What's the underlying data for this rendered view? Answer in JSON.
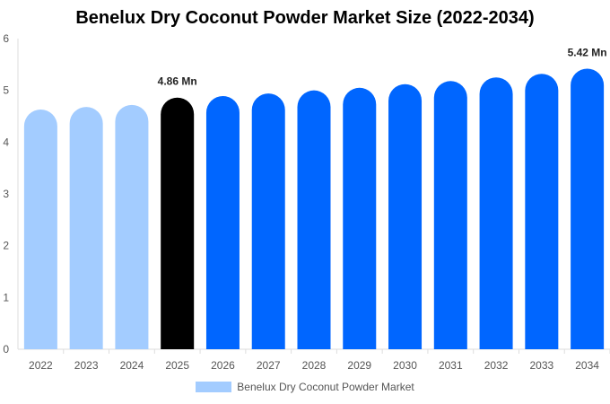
{
  "chart_data": {
    "type": "bar",
    "title": "Benelux Dry Coconut Powder Market Size (2022-2034)",
    "xlabel": "",
    "ylabel": "",
    "categories": [
      "2022",
      "2023",
      "2024",
      "2025",
      "2026",
      "2027",
      "2028",
      "2029",
      "2030",
      "2031",
      "2032",
      "2033",
      "2034"
    ],
    "series": [
      {
        "name": "Benelux Dry Coconut Powder Market",
        "values": [
          4.63,
          4.68,
          4.72,
          4.86,
          4.89,
          4.94,
          5.0,
          5.05,
          5.12,
          5.18,
          5.25,
          5.32,
          5.42
        ]
      }
    ],
    "ylim": [
      0,
      6
    ],
    "yticks": [
      0,
      1,
      2,
      3,
      4,
      5,
      6
    ],
    "data_labels": [
      {
        "index": 3,
        "text": "4.86 Mn"
      },
      {
        "index": 12,
        "text": "5.42 Mn"
      }
    ],
    "bar_colors": {
      "historical": "#a3ccff",
      "current": "#000000",
      "forecast": "#0066ff"
    },
    "current_index": 3,
    "grid": false,
    "legend_position": "bottom",
    "legend_color": "#a3ccff"
  }
}
